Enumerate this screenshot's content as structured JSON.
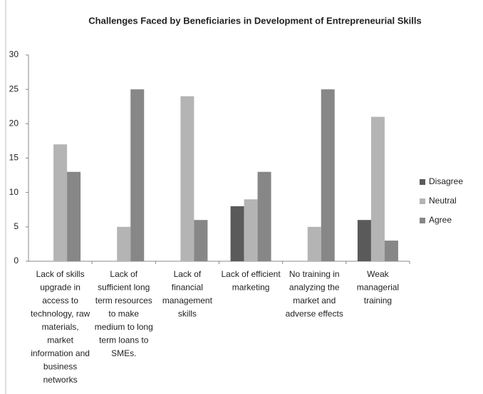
{
  "chart_data": {
    "type": "bar",
    "title": "Challenges Faced by Beneficiaries in Development of  Entrepreneurial Skills",
    "categories": [
      "Lack of skills upgrade in access to technology, raw materials, market information and business networks",
      "Lack of sufficient long term resources to make medium to long term loans to SMEs.",
      "Lack of financial management skills",
      "Lack of efficient marketing",
      "No training in analyzing the market and adverse effects",
      "Weak managerial training"
    ],
    "series": [
      {
        "name": "Disagree",
        "color": "#5a5a5a",
        "values": [
          0,
          0,
          0,
          8,
          0,
          6
        ]
      },
      {
        "name": "Neutral",
        "color": "#b4b4b4",
        "values": [
          17,
          5,
          24,
          9,
          5,
          21
        ]
      },
      {
        "name": "Agree",
        "color": "#878787",
        "values": [
          13,
          25,
          6,
          13,
          25,
          3
        ]
      }
    ],
    "ylim": [
      0,
      30
    ],
    "yticks": [
      0,
      5,
      10,
      15,
      20,
      25,
      30
    ],
    "grid": false,
    "legend": "right"
  }
}
